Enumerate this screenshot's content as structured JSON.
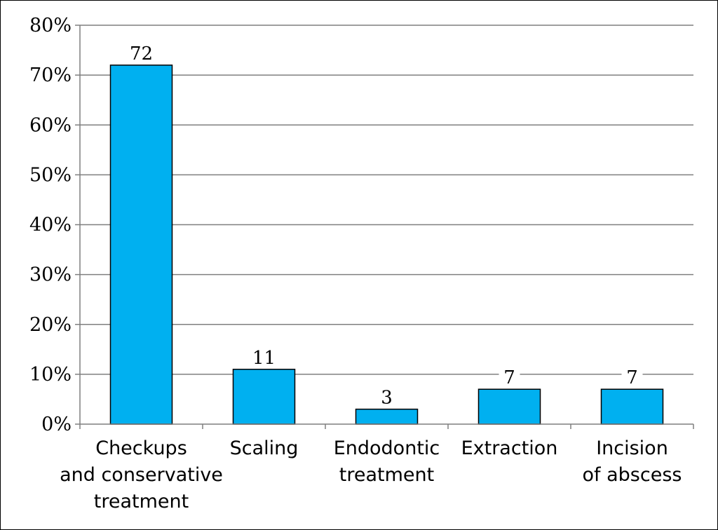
{
  "chart_data": {
    "type": "bar",
    "categories": [
      [
        "Checkups",
        "and conservative",
        "treatment"
      ],
      [
        "Scaling"
      ],
      [
        "Endodontic",
        "treatment"
      ],
      [
        "Extraction"
      ],
      [
        "Incision",
        "of abscess"
      ]
    ],
    "values": [
      72,
      11,
      3,
      7,
      7
    ],
    "data_labels": [
      "72",
      "11",
      "3",
      "7",
      "7"
    ],
    "yticks": [
      "0%",
      "10%",
      "20%",
      "30%",
      "40%",
      "50%",
      "60%",
      "70%",
      "80%"
    ],
    "ylim": [
      0,
      80
    ],
    "y_unit": "%",
    "grid": true,
    "legend": "none",
    "title": "",
    "xlabel": "",
    "ylabel": "",
    "colors": {
      "bar_fill": "#00B0F0",
      "bar_stroke": "#000000",
      "grid": "#7f7f7f",
      "axis": "#7f7f7f"
    }
  }
}
